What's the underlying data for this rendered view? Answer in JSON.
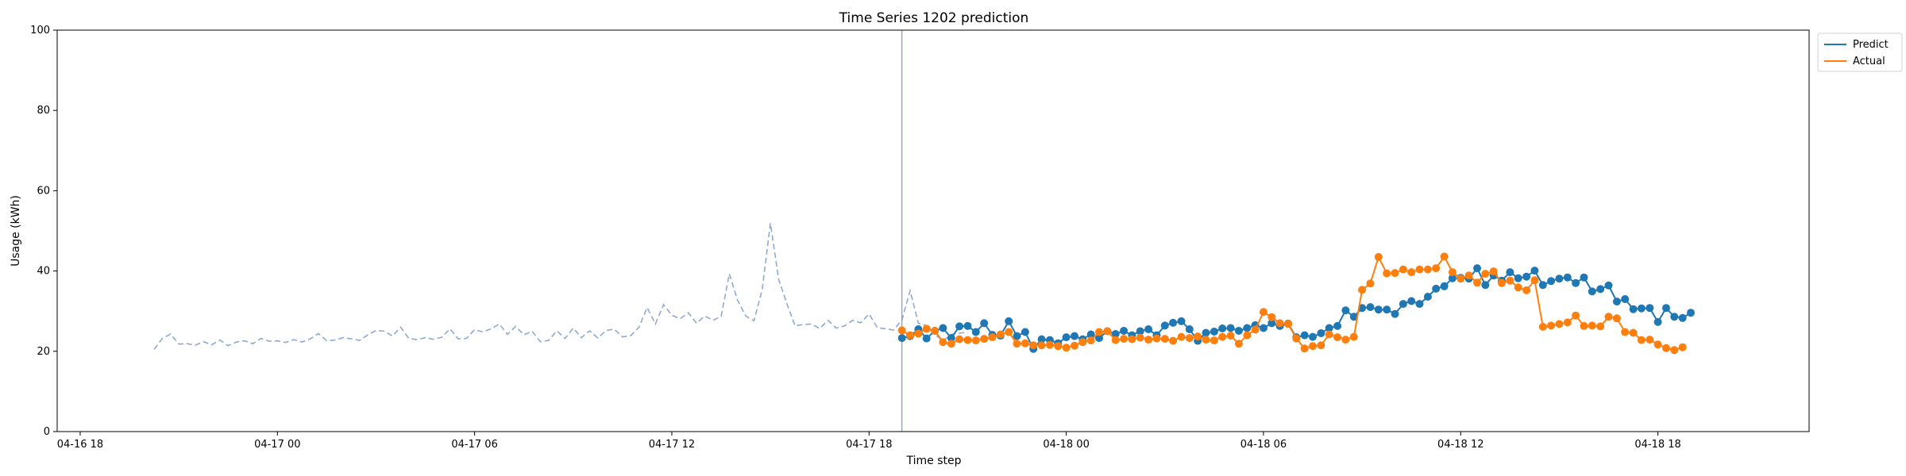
{
  "chart_data": {
    "type": "line",
    "title": "Time Series 1202 prediction",
    "xlabel": "Time step",
    "ylabel": "Usage (kWh)",
    "ylim": [
      0,
      100
    ],
    "yticks": [
      0,
      20,
      40,
      60,
      80,
      100
    ],
    "xticks": [
      "04-16 18",
      "04-17 00",
      "04-17 06",
      "04-17 12",
      "04-17 18",
      "04-18 00",
      "04-18 06",
      "04-18 12",
      "04-18 18"
    ],
    "xlim_hours": [
      -0.7,
      52.6
    ],
    "x_origin_label": "04-16 18",
    "grid": false,
    "legend_position": "upper-right-outside",
    "forecast_start_hour": 25.0,
    "colors": {
      "predict": "#1f77b4",
      "actual": "#ff7f0e",
      "history": "#8faacc",
      "split": "#8096c8"
    },
    "history": {
      "start_hour": 2.25,
      "step_hours": 0.25,
      "values": [
        20.5,
        23.2,
        24.3,
        21.8,
        21.9,
        21.5,
        22.4,
        21.6,
        22.8,
        21.4,
        22.3,
        22.6,
        21.9,
        23.2,
        22.5,
        22.6,
        22.2,
        22.9,
        22.3,
        23.1,
        24.4,
        22.6,
        22.8,
        23.4,
        23.1,
        22.7,
        24.1,
        25.2,
        25.0,
        23.8,
        26.0,
        23.2,
        22.9,
        23.4,
        23.0,
        23.5,
        25.6,
        23.1,
        23.2,
        25.4,
        24.8,
        25.6,
        26.8,
        24.2,
        26.2,
        24.1,
        25.0,
        22.4,
        22.7,
        25.1,
        23.2,
        25.8,
        23.4,
        25.1,
        23.3,
        25.2,
        25.5,
        23.6,
        23.9,
        26.0,
        30.9,
        26.8,
        31.6,
        29.0,
        28.1,
        29.6,
        27.0,
        28.8,
        27.7,
        28.7,
        39.3,
        32.7,
        28.8,
        27.6,
        35.4,
        51.9,
        37.9,
        31.9,
        26.3,
        26.7,
        26.8,
        25.7,
        27.7,
        25.8,
        26.3,
        27.7,
        27.1,
        29.3,
        25.9,
        25.6,
        25.3,
        27.8,
        35.1,
        27.0,
        26.4,
        24.2,
        22.6,
        24.2,
        24.5,
        24.8
      ]
    },
    "forecast": {
      "start_hour": 25.0,
      "step_hours": 0.25,
      "series": [
        {
          "name": "Predict",
          "values": [
            23.3,
            23.8,
            25.5,
            23.2,
            25.1,
            25.8,
            23.3,
            26.2,
            26.3,
            24.8,
            27.0,
            24.1,
            23.9,
            27.5,
            23.8,
            24.8,
            20.6,
            23.0,
            22.8,
            22.0,
            23.5,
            23.8,
            23.0,
            24.2,
            23.3,
            25.0,
            24.3,
            25.1,
            24.0,
            25.0,
            25.5,
            24.0,
            26.4,
            27.1,
            27.5,
            25.5,
            22.6,
            24.6,
            24.9,
            25.7,
            25.8,
            25.1,
            25.8,
            26.5,
            25.8,
            27.0,
            26.3,
            26.9,
            23.5,
            24.0,
            23.6,
            24.5,
            25.8,
            26.3,
            30.2,
            28.6,
            30.8,
            31.0,
            30.4,
            30.4,
            29.3,
            31.8,
            32.5,
            31.8,
            33.6,
            35.6,
            36.2,
            38.2,
            38.3,
            38.1,
            40.7,
            36.5,
            38.9,
            37.6,
            39.7,
            38.2,
            38.6,
            40.1,
            36.5,
            37.5,
            38.1,
            38.4,
            37.0,
            38.4,
            34.9,
            35.5,
            36.4,
            32.4,
            33.0,
            30.5,
            30.7,
            30.8,
            27.3,
            30.8,
            28.6,
            28.3,
            29.6
          ]
        },
        {
          "name": "Actual",
          "values": [
            25.2,
            24.0,
            24.4,
            25.6,
            25.1,
            22.3,
            21.9,
            23.0,
            22.8,
            22.7,
            23.1,
            23.5,
            24.2,
            24.8,
            21.9,
            22.0,
            21.5,
            21.5,
            21.6,
            21.3,
            20.9,
            21.4,
            22.3,
            22.7,
            24.8,
            25.0,
            22.8,
            23.1,
            23.0,
            23.4,
            22.9,
            23.2,
            23.1,
            22.6,
            23.6,
            23.3,
            23.7,
            22.9,
            22.7,
            23.6,
            23.9,
            21.9,
            24.0,
            25.4,
            29.8,
            28.5,
            27.0,
            26.8,
            23.2,
            20.7,
            21.3,
            21.5,
            24.2,
            23.5,
            22.9,
            23.6,
            35.3,
            36.9,
            43.5,
            39.4,
            39.5,
            40.4,
            39.7,
            40.4,
            40.4,
            40.7,
            43.6,
            39.7,
            38.1,
            38.9,
            37.1,
            39.3,
            39.9,
            37.0,
            37.6,
            35.9,
            35.2,
            37.7,
            26.1,
            26.4,
            26.8,
            27.2,
            28.9,
            26.3,
            26.4,
            26.2,
            28.6,
            28.2,
            24.8,
            24.6,
            22.8,
            22.9,
            21.7,
            20.8,
            20.3,
            21.0
          ]
        }
      ]
    }
  }
}
